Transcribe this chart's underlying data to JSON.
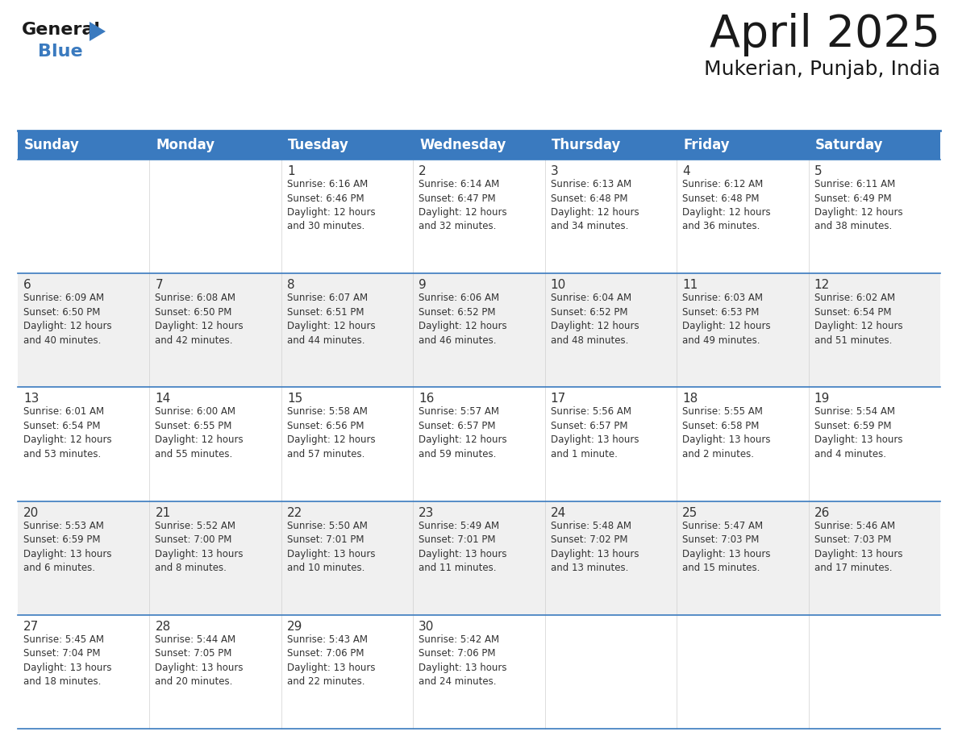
{
  "title": "April 2025",
  "subtitle": "Mukerian, Punjab, India",
  "header_bg": "#3a7abf",
  "header_text_color": "#FFFFFF",
  "cell_bg_white": "#FFFFFF",
  "cell_bg_gray": "#F0F0F0",
  "border_color": "#3a7abf",
  "text_color": "#333333",
  "days_of_week": [
    "Sunday",
    "Monday",
    "Tuesday",
    "Wednesday",
    "Thursday",
    "Friday",
    "Saturday"
  ],
  "calendar": [
    [
      {
        "day": "",
        "info": ""
      },
      {
        "day": "",
        "info": ""
      },
      {
        "day": "1",
        "info": "Sunrise: 6:16 AM\nSunset: 6:46 PM\nDaylight: 12 hours\nand 30 minutes."
      },
      {
        "day": "2",
        "info": "Sunrise: 6:14 AM\nSunset: 6:47 PM\nDaylight: 12 hours\nand 32 minutes."
      },
      {
        "day": "3",
        "info": "Sunrise: 6:13 AM\nSunset: 6:48 PM\nDaylight: 12 hours\nand 34 minutes."
      },
      {
        "day": "4",
        "info": "Sunrise: 6:12 AM\nSunset: 6:48 PM\nDaylight: 12 hours\nand 36 minutes."
      },
      {
        "day": "5",
        "info": "Sunrise: 6:11 AM\nSunset: 6:49 PM\nDaylight: 12 hours\nand 38 minutes."
      }
    ],
    [
      {
        "day": "6",
        "info": "Sunrise: 6:09 AM\nSunset: 6:50 PM\nDaylight: 12 hours\nand 40 minutes."
      },
      {
        "day": "7",
        "info": "Sunrise: 6:08 AM\nSunset: 6:50 PM\nDaylight: 12 hours\nand 42 minutes."
      },
      {
        "day": "8",
        "info": "Sunrise: 6:07 AM\nSunset: 6:51 PM\nDaylight: 12 hours\nand 44 minutes."
      },
      {
        "day": "9",
        "info": "Sunrise: 6:06 AM\nSunset: 6:52 PM\nDaylight: 12 hours\nand 46 minutes."
      },
      {
        "day": "10",
        "info": "Sunrise: 6:04 AM\nSunset: 6:52 PM\nDaylight: 12 hours\nand 48 minutes."
      },
      {
        "day": "11",
        "info": "Sunrise: 6:03 AM\nSunset: 6:53 PM\nDaylight: 12 hours\nand 49 minutes."
      },
      {
        "day": "12",
        "info": "Sunrise: 6:02 AM\nSunset: 6:54 PM\nDaylight: 12 hours\nand 51 minutes."
      }
    ],
    [
      {
        "day": "13",
        "info": "Sunrise: 6:01 AM\nSunset: 6:54 PM\nDaylight: 12 hours\nand 53 minutes."
      },
      {
        "day": "14",
        "info": "Sunrise: 6:00 AM\nSunset: 6:55 PM\nDaylight: 12 hours\nand 55 minutes."
      },
      {
        "day": "15",
        "info": "Sunrise: 5:58 AM\nSunset: 6:56 PM\nDaylight: 12 hours\nand 57 minutes."
      },
      {
        "day": "16",
        "info": "Sunrise: 5:57 AM\nSunset: 6:57 PM\nDaylight: 12 hours\nand 59 minutes."
      },
      {
        "day": "17",
        "info": "Sunrise: 5:56 AM\nSunset: 6:57 PM\nDaylight: 13 hours\nand 1 minute."
      },
      {
        "day": "18",
        "info": "Sunrise: 5:55 AM\nSunset: 6:58 PM\nDaylight: 13 hours\nand 2 minutes."
      },
      {
        "day": "19",
        "info": "Sunrise: 5:54 AM\nSunset: 6:59 PM\nDaylight: 13 hours\nand 4 minutes."
      }
    ],
    [
      {
        "day": "20",
        "info": "Sunrise: 5:53 AM\nSunset: 6:59 PM\nDaylight: 13 hours\nand 6 minutes."
      },
      {
        "day": "21",
        "info": "Sunrise: 5:52 AM\nSunset: 7:00 PM\nDaylight: 13 hours\nand 8 minutes."
      },
      {
        "day": "22",
        "info": "Sunrise: 5:50 AM\nSunset: 7:01 PM\nDaylight: 13 hours\nand 10 minutes."
      },
      {
        "day": "23",
        "info": "Sunrise: 5:49 AM\nSunset: 7:01 PM\nDaylight: 13 hours\nand 11 minutes."
      },
      {
        "day": "24",
        "info": "Sunrise: 5:48 AM\nSunset: 7:02 PM\nDaylight: 13 hours\nand 13 minutes."
      },
      {
        "day": "25",
        "info": "Sunrise: 5:47 AM\nSunset: 7:03 PM\nDaylight: 13 hours\nand 15 minutes."
      },
      {
        "day": "26",
        "info": "Sunrise: 5:46 AM\nSunset: 7:03 PM\nDaylight: 13 hours\nand 17 minutes."
      }
    ],
    [
      {
        "day": "27",
        "info": "Sunrise: 5:45 AM\nSunset: 7:04 PM\nDaylight: 13 hours\nand 18 minutes."
      },
      {
        "day": "28",
        "info": "Sunrise: 5:44 AM\nSunset: 7:05 PM\nDaylight: 13 hours\nand 20 minutes."
      },
      {
        "day": "29",
        "info": "Sunrise: 5:43 AM\nSunset: 7:06 PM\nDaylight: 13 hours\nand 22 minutes."
      },
      {
        "day": "30",
        "info": "Sunrise: 5:42 AM\nSunset: 7:06 PM\nDaylight: 13 hours\nand 24 minutes."
      },
      {
        "day": "",
        "info": ""
      },
      {
        "day": "",
        "info": ""
      },
      {
        "day": "",
        "info": ""
      }
    ]
  ],
  "logo_general_color": "#1a1a1a",
  "logo_blue_color": "#3a7abf",
  "logo_triangle_color": "#3a7abf",
  "title_fontsize": 40,
  "subtitle_fontsize": 18,
  "header_fontsize": 12,
  "day_num_fontsize": 11,
  "info_fontsize": 8.5
}
